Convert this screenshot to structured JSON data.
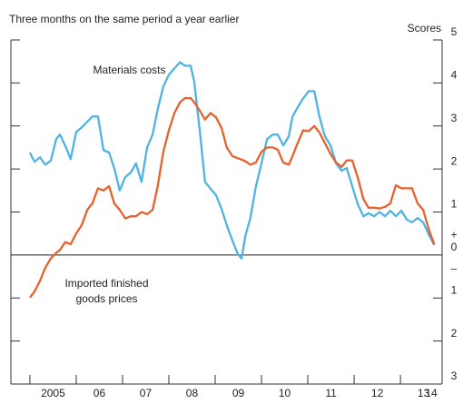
{
  "chart_data": {
    "type": "line",
    "title": "Three months on the same period a year earlier",
    "y_axis_label": "Scores",
    "sign_labels": {
      "positive": "+",
      "negative": "–"
    },
    "x": [
      2005,
      2005.1,
      2005.22,
      2005.33,
      2005.45,
      2005.57,
      2005.65,
      2005.76,
      2005.88,
      2006,
      2006.12,
      2006.24,
      2006.35,
      2006.47,
      2006.59,
      2006.71,
      2006.82,
      2006.94,
      2007.06,
      2007.18,
      2007.29,
      2007.41,
      2007.53,
      2007.65,
      2007.76,
      2007.88,
      2008,
      2008.12,
      2008.24,
      2008.35,
      2008.47,
      2008.55,
      2008.67,
      2008.78,
      2008.9,
      2009.02,
      2009.14,
      2009.25,
      2009.37,
      2009.49,
      2009.57,
      2009.65,
      2009.76,
      2009.88,
      2010,
      2010.12,
      2010.24,
      2010.35,
      2010.47,
      2010.59,
      2010.67,
      2010.78,
      2010.9,
      2011.02,
      2011.14,
      2011.25,
      2011.37,
      2011.49,
      2011.61,
      2011.73,
      2011.84,
      2011.96,
      2012.08,
      2012.2,
      2012.31,
      2012.43,
      2012.55,
      2012.67,
      2012.78,
      2012.9,
      2013.02,
      2013.14,
      2013.25,
      2013.37,
      2013.49,
      2013.61,
      2013.73
    ],
    "series": [
      {
        "name": "Materials costs",
        "color": "#4fb3e3",
        "values": [
          2.38,
          2.17,
          2.27,
          2.1,
          2.19,
          2.7,
          2.8,
          2.55,
          2.23,
          2.86,
          2.97,
          3.1,
          3.22,
          3.22,
          2.44,
          2.38,
          2.02,
          1.5,
          1.81,
          1.92,
          2.13,
          1.7,
          2.5,
          2.8,
          3.39,
          3.92,
          4.19,
          4.34,
          4.48,
          4.4,
          4.4,
          4.02,
          2.86,
          1.7,
          1.54,
          1.39,
          1.07,
          0.69,
          0.34,
          0.02,
          -0.08,
          0.44,
          0.86,
          1.6,
          2.13,
          2.69,
          2.8,
          2.8,
          2.55,
          2.76,
          3.22,
          3.43,
          3.64,
          3.81,
          3.81,
          3.22,
          2.76,
          2.55,
          2.13,
          1.96,
          2.02,
          1.6,
          1.18,
          0.9,
          0.97,
          0.9,
          1.0,
          0.9,
          1.03,
          0.9,
          1.03,
          0.82,
          0.76,
          0.86,
          0.76,
          0.48,
          0.23
        ]
      },
      {
        "name": "Imported finished goods prices",
        "color": "#e8612c",
        "values": [
          -0.99,
          -0.85,
          -0.6,
          -0.3,
          -0.08,
          0.05,
          0.12,
          0.3,
          0.25,
          0.5,
          0.7,
          1.05,
          1.2,
          1.55,
          1.5,
          1.6,
          1.2,
          1.05,
          0.85,
          0.9,
          0.9,
          1.0,
          0.95,
          1.05,
          1.6,
          2.4,
          2.9,
          3.3,
          3.55,
          3.65,
          3.65,
          3.55,
          3.35,
          3.15,
          3.3,
          3.2,
          2.95,
          2.5,
          2.3,
          2.25,
          2.22,
          2.18,
          2.1,
          2.15,
          2.4,
          2.5,
          2.5,
          2.45,
          2.15,
          2.1,
          2.3,
          2.6,
          2.9,
          2.88,
          3.0,
          2.85,
          2.6,
          2.35,
          2.15,
          2.05,
          2.2,
          2.2,
          1.8,
          1.3,
          1.1,
          1.1,
          1.08,
          1.12,
          1.2,
          1.62,
          1.55,
          1.55,
          1.55,
          1.2,
          1.05,
          0.6,
          0.25
        ]
      }
    ],
    "xlim": [
      2004.59,
      2013.9
    ],
    "xticks": [
      {
        "value": 2005,
        "label": "2005"
      },
      {
        "value": 2006,
        "label": "06"
      },
      {
        "value": 2007,
        "label": "07"
      },
      {
        "value": 2008,
        "label": "08"
      },
      {
        "value": 2009,
        "label": "09"
      },
      {
        "value": 2010,
        "label": "10"
      },
      {
        "value": 2011,
        "label": "11"
      },
      {
        "value": 2012,
        "label": "12"
      },
      {
        "value": 2013,
        "label": "13"
      },
      {
        "value": 2014,
        "label": "14"
      }
    ],
    "ylim": [
      -3,
      5
    ],
    "yticks": [
      5,
      4,
      3,
      2,
      1,
      0,
      {
        "value": -1,
        "label": "1"
      },
      {
        "value": -2,
        "label": "2"
      },
      {
        "value": -3,
        "label": "3"
      }
    ]
  }
}
